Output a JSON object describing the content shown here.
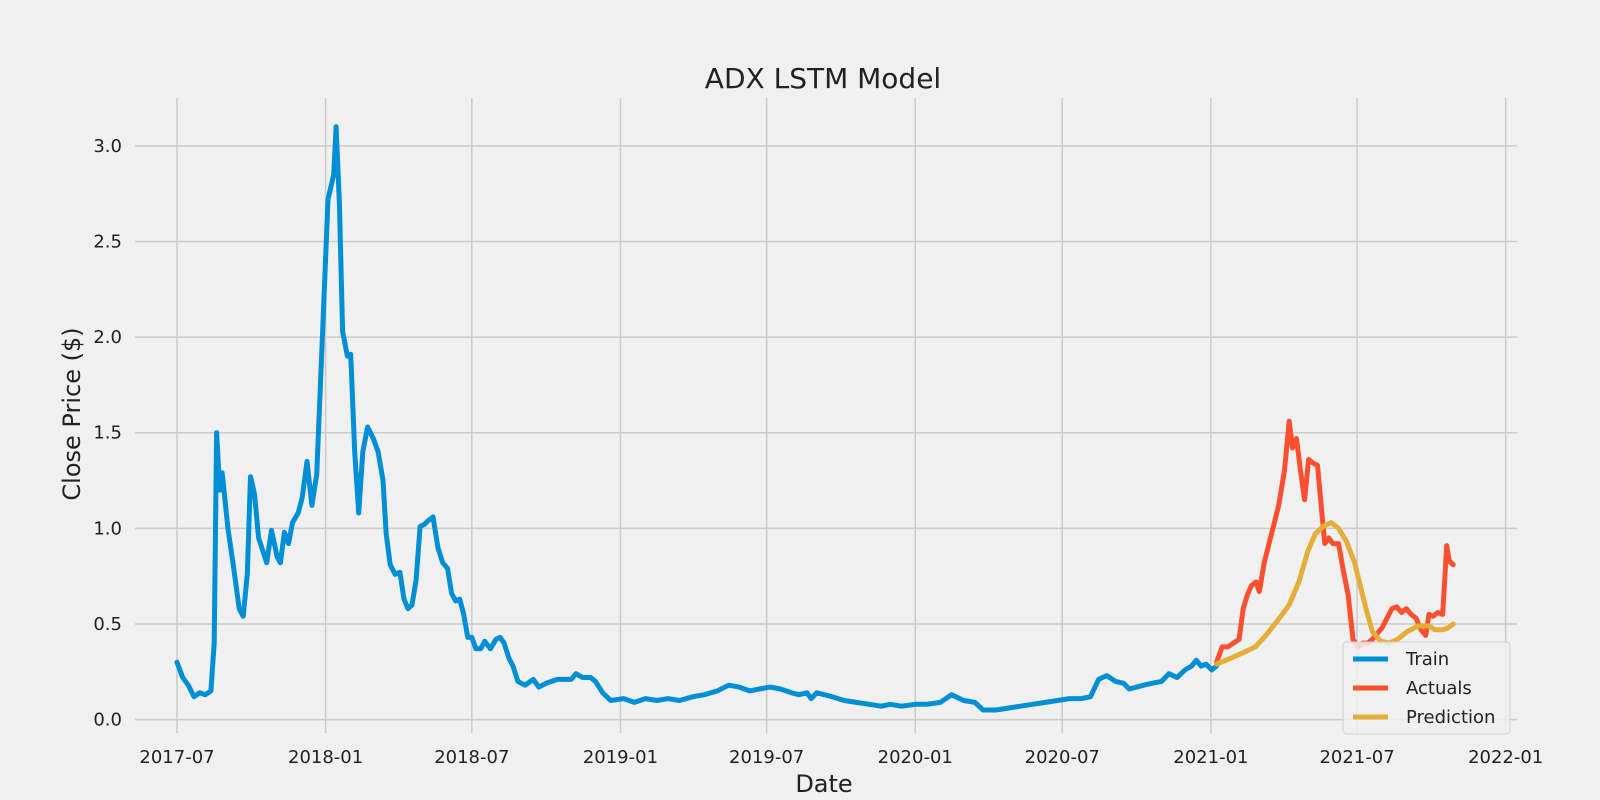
{
  "chart_data": {
    "type": "line",
    "title": "ADX LSTM Model",
    "xlabel": "Date",
    "ylabel": "Close Price ($)",
    "xlim": [
      "2017-05-10",
      "2022-01-15"
    ],
    "ylim": [
      -0.07,
      3.25
    ],
    "x_ticks": [
      "2017-07",
      "2018-01",
      "2018-07",
      "2019-01",
      "2019-07",
      "2020-01",
      "2020-07",
      "2021-01",
      "2021-07",
      "2022-01"
    ],
    "y_ticks": [
      "0.0",
      "0.5",
      "1.0",
      "1.5",
      "2.0",
      "2.5",
      "3.0"
    ],
    "grid": true,
    "legend_position": "lower-right",
    "series": [
      {
        "name": "Train",
        "color": "#008fd5",
        "points": [
          [
            "2017-07-01",
            0.3
          ],
          [
            "2017-07-08",
            0.22
          ],
          [
            "2017-07-15",
            0.18
          ],
          [
            "2017-07-22",
            0.12
          ],
          [
            "2017-07-29",
            0.14
          ],
          [
            "2017-08-05",
            0.13
          ],
          [
            "2017-08-12",
            0.15
          ],
          [
            "2017-08-16",
            0.4
          ],
          [
            "2017-08-19",
            1.5
          ],
          [
            "2017-08-23",
            1.2
          ],
          [
            "2017-08-26",
            1.29
          ],
          [
            "2017-09-02",
            1.0
          ],
          [
            "2017-09-09",
            0.8
          ],
          [
            "2017-09-16",
            0.58
          ],
          [
            "2017-09-21",
            0.54
          ],
          [
            "2017-09-26",
            0.76
          ],
          [
            "2017-09-30",
            1.27
          ],
          [
            "2017-10-05",
            1.18
          ],
          [
            "2017-10-10",
            0.95
          ],
          [
            "2017-10-20",
            0.82
          ],
          [
            "2017-10-26",
            0.99
          ],
          [
            "2017-11-02",
            0.85
          ],
          [
            "2017-11-06",
            0.82
          ],
          [
            "2017-11-11",
            0.98
          ],
          [
            "2017-11-16",
            0.92
          ],
          [
            "2017-11-21",
            1.03
          ],
          [
            "2017-11-28",
            1.08
          ],
          [
            "2017-12-03",
            1.16
          ],
          [
            "2017-12-09",
            1.35
          ],
          [
            "2017-12-15",
            1.12
          ],
          [
            "2017-12-21",
            1.28
          ],
          [
            "2017-12-28",
            2.0
          ],
          [
            "2018-01-04",
            2.72
          ],
          [
            "2018-01-11",
            2.85
          ],
          [
            "2018-01-14",
            3.1
          ],
          [
            "2018-01-18",
            2.7
          ],
          [
            "2018-01-22",
            2.03
          ],
          [
            "2018-01-28",
            1.9
          ],
          [
            "2018-02-01",
            1.91
          ],
          [
            "2018-02-06",
            1.4
          ],
          [
            "2018-02-11",
            1.08
          ],
          [
            "2018-02-16",
            1.4
          ],
          [
            "2018-02-22",
            1.53
          ],
          [
            "2018-03-01",
            1.47
          ],
          [
            "2018-03-07",
            1.4
          ],
          [
            "2018-03-13",
            1.25
          ],
          [
            "2018-03-17",
            0.97
          ],
          [
            "2018-03-22",
            0.81
          ],
          [
            "2018-03-28",
            0.76
          ],
          [
            "2018-04-03",
            0.77
          ],
          [
            "2018-04-08",
            0.63
          ],
          [
            "2018-04-13",
            0.58
          ],
          [
            "2018-04-18",
            0.6
          ],
          [
            "2018-04-23",
            0.73
          ],
          [
            "2018-04-28",
            1.01
          ],
          [
            "2018-05-03",
            1.02
          ],
          [
            "2018-05-08",
            1.04
          ],
          [
            "2018-05-14",
            1.06
          ],
          [
            "2018-05-20",
            0.9
          ],
          [
            "2018-05-26",
            0.82
          ],
          [
            "2018-06-01",
            0.79
          ],
          [
            "2018-06-06",
            0.66
          ],
          [
            "2018-06-11",
            0.62
          ],
          [
            "2018-06-16",
            0.63
          ],
          [
            "2018-06-21",
            0.55
          ],
          [
            "2018-06-26",
            0.43
          ],
          [
            "2018-07-01",
            0.43
          ],
          [
            "2018-07-06",
            0.37
          ],
          [
            "2018-07-12",
            0.37
          ],
          [
            "2018-07-17",
            0.41
          ],
          [
            "2018-07-24",
            0.37
          ],
          [
            "2018-07-31",
            0.42
          ],
          [
            "2018-08-05",
            0.43
          ],
          [
            "2018-08-10",
            0.4
          ],
          [
            "2018-08-16",
            0.32
          ],
          [
            "2018-08-21",
            0.28
          ],
          [
            "2018-08-27",
            0.2
          ],
          [
            "2018-09-05",
            0.18
          ],
          [
            "2018-09-15",
            0.21
          ],
          [
            "2018-09-22",
            0.17
          ],
          [
            "2018-10-01",
            0.19
          ],
          [
            "2018-10-15",
            0.21
          ],
          [
            "2018-11-01",
            0.21
          ],
          [
            "2018-11-07",
            0.24
          ],
          [
            "2018-11-15",
            0.22
          ],
          [
            "2018-11-25",
            0.22
          ],
          [
            "2018-12-01",
            0.2
          ],
          [
            "2018-12-10",
            0.14
          ],
          [
            "2018-12-20",
            0.1
          ],
          [
            "2019-01-05",
            0.11
          ],
          [
            "2019-01-18",
            0.09
          ],
          [
            "2019-02-01",
            0.11
          ],
          [
            "2019-02-15",
            0.1
          ],
          [
            "2019-03-01",
            0.11
          ],
          [
            "2019-03-15",
            0.1
          ],
          [
            "2019-04-01",
            0.12
          ],
          [
            "2019-04-15",
            0.13
          ],
          [
            "2019-05-01",
            0.15
          ],
          [
            "2019-05-15",
            0.18
          ],
          [
            "2019-05-28",
            0.17
          ],
          [
            "2019-06-10",
            0.15
          ],
          [
            "2019-06-22",
            0.16
          ],
          [
            "2019-07-05",
            0.17
          ],
          [
            "2019-07-18",
            0.16
          ],
          [
            "2019-08-01",
            0.14
          ],
          [
            "2019-08-10",
            0.13
          ],
          [
            "2019-08-20",
            0.14
          ],
          [
            "2019-08-25",
            0.11
          ],
          [
            "2019-09-01",
            0.14
          ],
          [
            "2019-09-20",
            0.12
          ],
          [
            "2019-10-05",
            0.1
          ],
          [
            "2019-10-20",
            0.09
          ],
          [
            "2019-11-05",
            0.08
          ],
          [
            "2019-11-20",
            0.07
          ],
          [
            "2019-12-01",
            0.08
          ],
          [
            "2019-12-15",
            0.07
          ],
          [
            "2020-01-01",
            0.08
          ],
          [
            "2020-01-15",
            0.08
          ],
          [
            "2020-02-01",
            0.09
          ],
          [
            "2020-02-15",
            0.13
          ],
          [
            "2020-03-01",
            0.1
          ],
          [
            "2020-03-15",
            0.09
          ],
          [
            "2020-03-25",
            0.05
          ],
          [
            "2020-04-10",
            0.05
          ],
          [
            "2020-04-25",
            0.06
          ],
          [
            "2020-05-10",
            0.07
          ],
          [
            "2020-05-25",
            0.08
          ],
          [
            "2020-06-10",
            0.09
          ],
          [
            "2020-06-25",
            0.1
          ],
          [
            "2020-07-10",
            0.11
          ],
          [
            "2020-07-25",
            0.11
          ],
          [
            "2020-08-05",
            0.12
          ],
          [
            "2020-08-15",
            0.21
          ],
          [
            "2020-08-25",
            0.23
          ],
          [
            "2020-09-05",
            0.2
          ],
          [
            "2020-09-15",
            0.19
          ],
          [
            "2020-09-22",
            0.16
          ],
          [
            "2020-10-01",
            0.17
          ],
          [
            "2020-10-10",
            0.18
          ],
          [
            "2020-10-20",
            0.19
          ],
          [
            "2020-11-01",
            0.2
          ],
          [
            "2020-11-10",
            0.24
          ],
          [
            "2020-11-20",
            0.22
          ],
          [
            "2020-11-30",
            0.26
          ],
          [
            "2020-12-08",
            0.28
          ],
          [
            "2020-12-14",
            0.31
          ],
          [
            "2020-12-20",
            0.28
          ],
          [
            "2020-12-26",
            0.29
          ],
          [
            "2021-01-02",
            0.26
          ],
          [
            "2021-01-08",
            0.28
          ]
        ]
      },
      {
        "name": "Actuals",
        "color": "#fc4f30",
        "points": [
          [
            "2021-01-08",
            0.3
          ],
          [
            "2021-01-15",
            0.38
          ],
          [
            "2021-01-22",
            0.38
          ],
          [
            "2021-01-29",
            0.4
          ],
          [
            "2021-02-05",
            0.42
          ],
          [
            "2021-02-10",
            0.58
          ],
          [
            "2021-02-15",
            0.65
          ],
          [
            "2021-02-20",
            0.7
          ],
          [
            "2021-02-26",
            0.72
          ],
          [
            "2021-03-02",
            0.67
          ],
          [
            "2021-03-08",
            0.82
          ],
          [
            "2021-03-14",
            0.92
          ],
          [
            "2021-03-20",
            1.02
          ],
          [
            "2021-03-26",
            1.12
          ],
          [
            "2021-04-02",
            1.3
          ],
          [
            "2021-04-08",
            1.56
          ],
          [
            "2021-04-12",
            1.42
          ],
          [
            "2021-04-17",
            1.47
          ],
          [
            "2021-04-22",
            1.3
          ],
          [
            "2021-04-27",
            1.15
          ],
          [
            "2021-05-02",
            1.36
          ],
          [
            "2021-05-08",
            1.34
          ],
          [
            "2021-05-13",
            1.33
          ],
          [
            "2021-05-18",
            1.1
          ],
          [
            "2021-05-22",
            0.92
          ],
          [
            "2021-05-27",
            0.95
          ],
          [
            "2021-06-01",
            0.92
          ],
          [
            "2021-06-08",
            0.92
          ],
          [
            "2021-06-14",
            0.78
          ],
          [
            "2021-06-20",
            0.65
          ],
          [
            "2021-06-26",
            0.42
          ],
          [
            "2021-07-02",
            0.38
          ],
          [
            "2021-07-08",
            0.4
          ],
          [
            "2021-07-14",
            0.4
          ],
          [
            "2021-07-20",
            0.42
          ],
          [
            "2021-07-26",
            0.45
          ],
          [
            "2021-08-01",
            0.48
          ],
          [
            "2021-08-07",
            0.53
          ],
          [
            "2021-08-13",
            0.58
          ],
          [
            "2021-08-19",
            0.59
          ],
          [
            "2021-08-25",
            0.56
          ],
          [
            "2021-08-31",
            0.58
          ],
          [
            "2021-09-06",
            0.55
          ],
          [
            "2021-09-12",
            0.53
          ],
          [
            "2021-09-18",
            0.47
          ],
          [
            "2021-09-24",
            0.44
          ],
          [
            "2021-09-28",
            0.55
          ],
          [
            "2021-10-03",
            0.54
          ],
          [
            "2021-10-09",
            0.56
          ],
          [
            "2021-10-15",
            0.55
          ],
          [
            "2021-10-20",
            0.91
          ],
          [
            "2021-10-23",
            0.83
          ],
          [
            "2021-10-28",
            0.81
          ]
        ]
      },
      {
        "name": "Prediction",
        "color": "#e5ae38",
        "points": [
          [
            "2021-01-08",
            0.29
          ],
          [
            "2021-01-25",
            0.32
          ],
          [
            "2021-02-10",
            0.35
          ],
          [
            "2021-02-25",
            0.38
          ],
          [
            "2021-03-10",
            0.44
          ],
          [
            "2021-03-25",
            0.52
          ],
          [
            "2021-04-08",
            0.6
          ],
          [
            "2021-04-20",
            0.72
          ],
          [
            "2021-05-01",
            0.88
          ],
          [
            "2021-05-10",
            0.97
          ],
          [
            "2021-05-20",
            1.01
          ],
          [
            "2021-05-30",
            1.03
          ],
          [
            "2021-06-08",
            1.0
          ],
          [
            "2021-06-18",
            0.93
          ],
          [
            "2021-06-28",
            0.82
          ],
          [
            "2021-07-05",
            0.7
          ],
          [
            "2021-07-12",
            0.58
          ],
          [
            "2021-07-20",
            0.46
          ],
          [
            "2021-07-30",
            0.41
          ],
          [
            "2021-08-10",
            0.4
          ],
          [
            "2021-08-20",
            0.42
          ],
          [
            "2021-09-01",
            0.46
          ],
          [
            "2021-09-15",
            0.49
          ],
          [
            "2021-09-28",
            0.49
          ],
          [
            "2021-10-05",
            0.47
          ],
          [
            "2021-10-15",
            0.47
          ],
          [
            "2021-10-22",
            0.48
          ],
          [
            "2021-10-28",
            0.5
          ]
        ]
      }
    ]
  }
}
